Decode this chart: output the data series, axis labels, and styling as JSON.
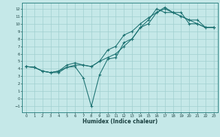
{
  "xlabel": "Humidex (Indice chaleur)",
  "background_color": "#c5e8e8",
  "grid_color": "#9ecece",
  "line_color": "#1a7070",
  "xlim": [
    -0.5,
    23.5
  ],
  "ylim": [
    -1.8,
    12.8
  ],
  "xticks": [
    0,
    1,
    2,
    3,
    4,
    5,
    6,
    7,
    8,
    9,
    10,
    11,
    12,
    13,
    14,
    15,
    16,
    17,
    18,
    19,
    20,
    21,
    22,
    23
  ],
  "yticks": [
    -1,
    0,
    1,
    2,
    3,
    4,
    5,
    6,
    7,
    8,
    9,
    10,
    11,
    12
  ],
  "line1_x": [
    0,
    1,
    2,
    3,
    4,
    5,
    6,
    7,
    8,
    9,
    10,
    11,
    12,
    13,
    14,
    15,
    16,
    17,
    18,
    19,
    20,
    21,
    22,
    23
  ],
  "line1_y": [
    4.3,
    4.2,
    3.7,
    3.5,
    3.5,
    4.2,
    4.3,
    2.8,
    -1.0,
    3.2,
    5.3,
    5.5,
    7.5,
    8.0,
    9.5,
    10.0,
    11.5,
    12.0,
    11.5,
    11.0,
    10.5,
    10.5,
    9.5,
    9.5
  ],
  "line2_x": [
    0,
    1,
    2,
    3,
    4,
    5,
    6,
    7,
    8,
    9,
    10,
    11,
    12,
    13,
    14,
    15,
    16,
    17,
    18,
    19,
    20,
    21,
    22,
    23
  ],
  "line2_y": [
    4.3,
    4.2,
    3.7,
    3.5,
    3.7,
    4.2,
    4.5,
    4.5,
    4.3,
    5.0,
    5.5,
    6.0,
    7.0,
    8.0,
    9.5,
    10.5,
    12.0,
    11.5,
    11.5,
    11.5,
    10.0,
    10.0,
    9.5,
    9.5
  ],
  "line3_x": [
    0,
    1,
    2,
    3,
    4,
    5,
    6,
    7,
    8,
    9,
    10,
    11,
    12,
    13,
    14,
    15,
    16,
    17,
    18,
    19,
    20,
    21,
    22,
    23
  ],
  "line3_y": [
    4.3,
    4.2,
    3.7,
    3.5,
    3.7,
    4.5,
    4.8,
    4.5,
    4.3,
    5.0,
    6.5,
    7.0,
    8.5,
    9.0,
    10.0,
    10.8,
    11.5,
    12.2,
    11.5,
    11.0,
    10.5,
    10.0,
    9.5,
    9.5
  ]
}
